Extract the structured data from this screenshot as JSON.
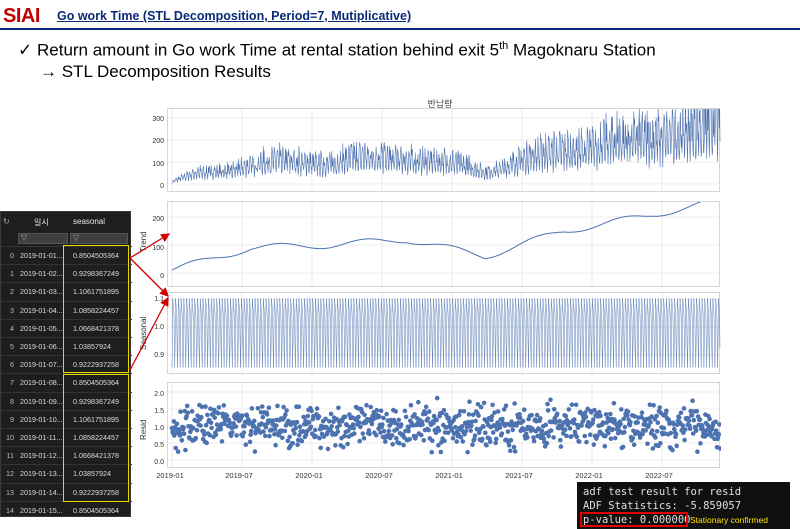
{
  "header": {
    "brand": "SIAI",
    "title": "Go work Time (STL Decomposition,  Period=7, Mutiplicative)"
  },
  "bullets": {
    "line1_pre": "Return amount in Go work Time at rental station behind exit 5",
    "line1_sup": "th",
    "line1_post": " Magoknaru Station",
    "line2": "→ STL Decomposition Results"
  },
  "plot": {
    "title": "반납량",
    "x_ticks": [
      "2019-01",
      "2019-07",
      "2020-01",
      "2020-07",
      "2021-01",
      "2021-07",
      "2022-01",
      "2022-07"
    ],
    "panels": [
      {
        "ylabel": "",
        "yticks": [
          "300",
          "200",
          "100",
          "0"
        ]
      },
      {
        "ylabel": "Trend",
        "yticks": [
          "200",
          "100",
          "0"
        ]
      },
      {
        "ylabel": "Seasonal",
        "yticks": [
          "1.1",
          "1.0",
          "0.9"
        ]
      },
      {
        "ylabel": "Resid",
        "yticks": [
          "2.0",
          "1.5",
          "1.0",
          "0.5",
          "0.0"
        ]
      }
    ]
  },
  "chart_data": [
    {
      "type": "line",
      "title": "반납량",
      "x": [
        "2019-01",
        "2019-07",
        "2020-01",
        "2020-07",
        "2021-01",
        "2021-07",
        "2022-01",
        "2022-07"
      ],
      "series": [
        {
          "values": [
            20,
            90,
            95,
            150,
            80,
            150,
            170,
            270
          ]
        }
      ],
      "ylim": [
        0,
        350
      ]
    },
    {
      "type": "line",
      "ylabel": "Trend",
      "x": [
        "2019-01",
        "2019-07",
        "2020-01",
        "2020-07",
        "2021-01",
        "2021-07",
        "2022-01",
        "2022-07"
      ],
      "series": [
        {
          "values": [
            10,
            90,
            100,
            120,
            60,
            150,
            200,
            260
          ]
        }
      ],
      "ylim": [
        0,
        280
      ]
    },
    {
      "type": "line",
      "ylabel": "Seasonal",
      "categories": [
        "2019-01-01",
        "2019-01-02",
        "2019-01-03",
        "2019-01-04",
        "2019-01-05",
        "2019-01-06",
        "2019-01-07"
      ],
      "series": [
        {
          "values": [
            0.8504505364,
            0.9298367249,
            1.1061751895,
            1.0858224457,
            1.0668421378,
            1.03857924,
            0.9222937258
          ]
        }
      ],
      "ylim": [
        0.85,
        1.11
      ]
    },
    {
      "type": "scatter",
      "ylabel": "Resid",
      "ylim": [
        0,
        2.1
      ]
    }
  ],
  "table": {
    "columns": [
      "일시",
      "seasonal"
    ],
    "rows": [
      [
        "0",
        "2019-01-01...",
        "0.8504505364"
      ],
      [
        "1",
        "2019-01-02...",
        "0.9298367249"
      ],
      [
        "2",
        "2019-01-03...",
        "1.1061751895"
      ],
      [
        "3",
        "2019-01-04...",
        "1.0858224457"
      ],
      [
        "4",
        "2019-01-05...",
        "1.0668421378"
      ],
      [
        "5",
        "2019-01-06...",
        "1.03857924"
      ],
      [
        "6",
        "2019-01-07...",
        "0.9222937258"
      ],
      [
        "7",
        "2019-01-08...",
        "0.8504505364"
      ],
      [
        "8",
        "2019-01-09...",
        "0.9298367249"
      ],
      [
        "9",
        "2019-01-10...",
        "1.1061751895"
      ],
      [
        "10",
        "2019-01-11...",
        "1.0858224457"
      ],
      [
        "11",
        "2019-01-12...",
        "1.0668421378"
      ],
      [
        "12",
        "2019-01-13...",
        "1.03857924"
      ],
      [
        "13",
        "2019-01-14...",
        "0.9222937258"
      ],
      [
        "14",
        "2019-01-15...",
        "0.8504505364"
      ]
    ]
  },
  "console": {
    "line1": "adf test result for resid",
    "line2": "ADF Statistics: -5.859057",
    "line3": "p-value: 0.000000",
    "note": "Stationary confirmed"
  },
  "colors": {
    "brand": "#c00000",
    "line": "#4c72b0",
    "highlight": "#e8d800",
    "arrow": "#d00000"
  }
}
